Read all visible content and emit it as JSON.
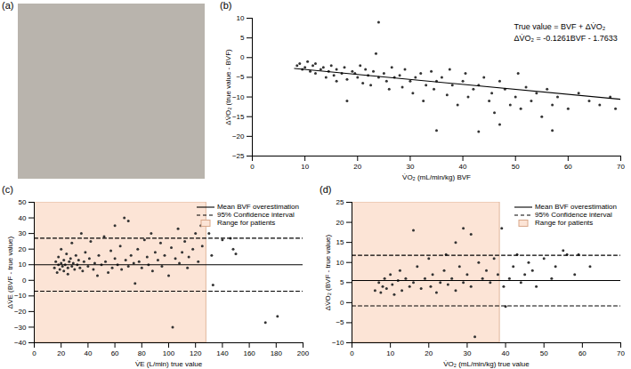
{
  "chart_data": [
    {
      "type": "image",
      "title": "(a)"
    },
    {
      "type": "scatter",
      "title": "(b)",
      "x_label": "V̇O₂ (mL/min/kg) BVF",
      "y_label": "ΔV̇O₂ (true value - BVF)",
      "xlim": [
        0,
        70
      ],
      "xticks": [
        0,
        10,
        20,
        30,
        40,
        50,
        60,
        70
      ],
      "ylim": [
        -25,
        10
      ],
      "yticks": [
        -25,
        -20,
        -15,
        -10,
        -5,
        0,
        5,
        10
      ],
      "annotations": [
        "True value = BVF + ΔV̇O₂",
        "ΔV̇O₂ = -0.1261BVF - 1.7633"
      ],
      "series": [
        {
          "type": "scatter",
          "color": "#333333",
          "marker": "circle",
          "x": [
            8.5,
            9,
            9.5,
            10,
            10.5,
            11,
            11.5,
            12,
            12,
            13,
            13.5,
            14,
            14.5,
            15,
            15.5,
            16,
            16,
            17,
            17.5,
            18,
            18,
            19,
            19.5,
            20,
            20.5,
            21,
            21.5,
            22,
            22.5,
            23,
            23.5,
            24,
            24,
            25,
            25.5,
            26,
            26.5,
            27,
            28,
            28.5,
            29,
            30,
            30.5,
            31,
            32,
            32.5,
            33,
            34,
            34.5,
            35,
            35,
            36,
            37,
            37.5,
            38,
            39,
            40,
            40.5,
            41,
            42,
            43,
            43,
            44,
            45,
            45.5,
            46,
            47,
            47,
            48,
            49,
            50,
            50.5,
            51,
            52,
            53,
            54,
            55,
            56,
            57,
            57,
            58,
            60,
            62,
            64,
            66,
            68,
            69
          ],
          "values": [
            -2,
            -1.5,
            -3,
            -2.5,
            -1,
            -3.5,
            -2,
            -4,
            -1.5,
            -3,
            -2.5,
            -5,
            -3.5,
            -2,
            -4.5,
            -3,
            -6,
            -4,
            -2.5,
            -5.5,
            -11,
            -3.5,
            -4,
            -5,
            -2,
            -6.5,
            -3,
            -4.5,
            -7,
            -3.5,
            1,
            9,
            -5,
            -4,
            -6,
            -8,
            -2.5,
            -5,
            -4.5,
            -7.5,
            -3,
            -6,
            -9,
            -5,
            -4,
            -11,
            -7,
            -3.5,
            -8,
            -18.5,
            -6,
            -5,
            -9.5,
            -3,
            -7,
            -12,
            -6,
            -4,
            -10,
            -8,
            -18.8,
            -7,
            -5,
            -11,
            -9,
            -14,
            -17,
            -6,
            -8,
            -12,
            -10,
            -4,
            -13,
            -7.5,
            -11,
            -9,
            -15,
            -8,
            -18.5,
            -12,
            -10,
            -13,
            -9,
            -11,
            -12,
            -10,
            -13
          ]
        },
        {
          "type": "line",
          "color": "#000000",
          "line_style": "solid",
          "x": [
            8,
            70
          ],
          "values": [
            -2.77,
            -10.59
          ]
        }
      ]
    },
    {
      "type": "scatter",
      "title": "(c)",
      "x_label": "V̇E (L/min) true value",
      "y_label": "ΔV̇E (BVF - true value)",
      "xlim": [
        0,
        200
      ],
      "xticks": [
        0,
        20,
        40,
        60,
        80,
        100,
        120,
        140,
        160,
        180,
        200
      ],
      "ylim": [
        -40,
        50
      ],
      "yticks": [
        -40,
        -30,
        -20,
        -10,
        0,
        10,
        20,
        30,
        40,
        50
      ],
      "legend": "top-right",
      "series": [
        {
          "type": "scatter",
          "color": "#333333",
          "marker": "circle",
          "x": [
            15,
            16,
            17,
            18,
            18,
            19,
            20,
            20,
            21,
            22,
            22,
            23,
            24,
            25,
            25,
            26,
            27,
            28,
            28,
            29,
            30,
            31,
            32,
            33,
            34,
            35,
            36,
            37,
            38,
            40,
            41,
            42,
            44,
            45,
            47,
            48,
            50,
            52,
            53,
            55,
            57,
            58,
            60,
            60,
            62,
            64,
            65,
            67,
            68,
            70,
            70,
            72,
            74,
            75,
            77,
            78,
            80,
            82,
            84,
            85,
            87,
            88,
            90,
            92,
            94,
            95,
            97,
            100,
            102,
            103,
            105,
            107,
            108,
            110,
            112,
            114,
            115,
            118,
            120,
            122,
            124,
            125,
            130,
            132,
            133,
            140,
            146,
            148,
            150,
            172,
            181
          ],
          "values": [
            8,
            12,
            5,
            10,
            15,
            7,
            11,
            20,
            9,
            6,
            13,
            10,
            17,
            8,
            4,
            12,
            14,
            9,
            24,
            11,
            7,
            16,
            10,
            13,
            8,
            30,
            6,
            12,
            18,
            9,
            14,
            25,
            7,
            11,
            3,
            16,
            10,
            28,
            12,
            5,
            19,
            8,
            35,
            14,
            10,
            22,
            7,
            40,
            13,
            38,
            9,
            16,
            11,
            -2,
            20,
            12,
            8,
            26,
            15,
            10,
            30,
            6,
            18,
            13,
            24,
            9,
            16,
            3,
            21,
            -30,
            14,
            33,
            11,
            18,
            25,
            8,
            15,
            20,
            30,
            12,
            35,
            22,
            30,
            16,
            -3,
            26,
            27,
            20,
            17,
            -27,
            -23
          ]
        },
        {
          "name": "Mean BVF overestimation",
          "type": "line",
          "color": "#000000",
          "line_style": "solid",
          "x": [
            0,
            200
          ],
          "values": [
            10,
            10
          ]
        },
        {
          "name": "95% Confidence interval",
          "type": "line",
          "color": "#000000",
          "line_style": "dashed",
          "x": [
            0,
            200
          ],
          "upper": [
            27,
            27
          ],
          "lower": [
            -7,
            -7
          ]
        },
        {
          "name": "Range for patients",
          "type": "area",
          "color": "#fce4d6",
          "x": [
            0,
            128
          ]
        }
      ]
    },
    {
      "type": "scatter",
      "title": "(d)",
      "x_label": "V̇O₂ (mL/min/kg) true value",
      "y_label": "ΔV̇O₂ (BVF - true value)",
      "xlim": [
        0,
        70
      ],
      "xticks": [
        0,
        10,
        20,
        30,
        40,
        50,
        60,
        70
      ],
      "ylim": [
        -10,
        25
      ],
      "yticks": [
        -10,
        -5,
        0,
        5,
        10,
        15,
        20,
        25
      ],
      "legend": "top-right",
      "series": [
        {
          "type": "scatter",
          "color": "#333333",
          "marker": "circle",
          "x": [
            6,
            7,
            7.5,
            8,
            8.5,
            9,
            10,
            10.5,
            11,
            12,
            12.5,
            13,
            14,
            15,
            16,
            16,
            17,
            18,
            19,
            20,
            20.5,
            21,
            22,
            23,
            24,
            24.5,
            25,
            26,
            27,
            27,
            28,
            29,
            29,
            30,
            31,
            31,
            32,
            33,
            34,
            35,
            36,
            37,
            38,
            39,
            39.5,
            40,
            41,
            42,
            43,
            44,
            45,
            46,
            47,
            48,
            50,
            52,
            53,
            55,
            56,
            58,
            59,
            62
          ],
          "values": [
            3,
            5,
            2.5,
            4,
            6,
            3.5,
            7,
            4.5,
            2,
            5.5,
            8,
            3,
            6,
            4,
            18,
            5,
            9,
            3.5,
            6,
            11,
            4,
            7,
            2.5,
            5,
            8,
            12,
            4.5,
            6,
            15,
            3,
            9,
            18.5,
            5,
            7,
            17,
            4,
            -8.5,
            10,
            6,
            8,
            5,
            11,
            7,
            18.5,
            4,
            -1,
            6,
            9,
            12,
            5,
            7,
            10,
            8,
            4,
            11,
            6,
            9,
            13,
            12,
            7,
            12,
            9
          ]
        },
        {
          "name": "Mean BVF overestimation",
          "type": "line",
          "color": "#000000",
          "line_style": "solid",
          "x": [
            0,
            70
          ],
          "values": [
            5.5,
            5.5
          ]
        },
        {
          "name": "95% Confidence interval",
          "type": "line",
          "color": "#000000",
          "line_style": "dashed",
          "x": [
            0,
            70
          ],
          "upper": [
            11.8,
            11.8
          ],
          "lower": [
            -0.8,
            -0.8
          ]
        },
        {
          "name": "Range for patients",
          "type": "area",
          "color": "#fce4d6",
          "x": [
            0,
            38.5
          ]
        }
      ]
    }
  ]
}
